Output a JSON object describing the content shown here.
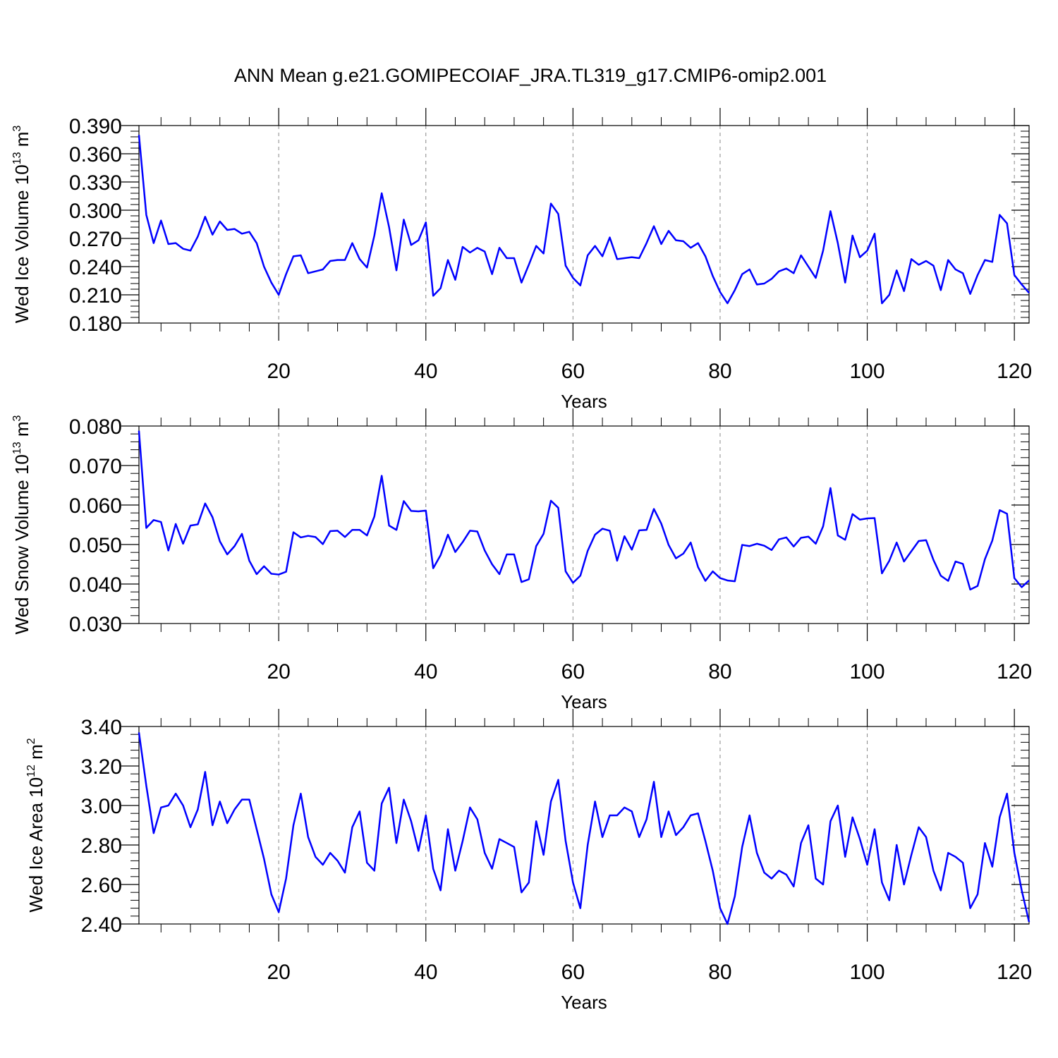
{
  "title": "ANN Mean g.e21.GOMIPECOIAF_JRA.TL319_g17.CMIP6-omip2.001",
  "colors": {
    "line": "#0000ff",
    "axes": "#000000",
    "grid": "#888888"
  },
  "chart_data": [
    {
      "type": "line",
      "xlabel": "Years",
      "ylabel": {
        "prefix": "Wed Ice Volume 10",
        "exp": "13",
        "unit": " m",
        "unit_exp": "3"
      },
      "xlim": [
        1,
        122
      ],
      "ylim": [
        0.18,
        0.39
      ],
      "xticks": [
        20,
        40,
        60,
        80,
        100,
        120
      ],
      "xtick_labels": [
        "20",
        "40",
        "60",
        "80",
        "100",
        "120"
      ],
      "yticks": [
        0.18,
        0.21,
        0.24,
        0.27,
        0.3,
        0.33,
        0.36,
        0.39
      ],
      "ytick_labels": [
        "0.180",
        "0.210",
        "0.240",
        "0.270",
        "0.300",
        "0.330",
        "0.360",
        "0.390"
      ],
      "grid": "vertical dashed at x ticks",
      "x_start": 1,
      "values": [
        0.38,
        0.295,
        0.265,
        0.289,
        0.264,
        0.265,
        0.259,
        0.257,
        0.272,
        0.293,
        0.274,
        0.288,
        0.279,
        0.28,
        0.275,
        0.277,
        0.265,
        0.24,
        0.223,
        0.21,
        0.232,
        0.251,
        0.252,
        0.233,
        0.235,
        0.237,
        0.246,
        0.247,
        0.247,
        0.265,
        0.248,
        0.239,
        0.273,
        0.318,
        0.282,
        0.236,
        0.29,
        0.263,
        0.268,
        0.287,
        0.209,
        0.217,
        0.247,
        0.226,
        0.261,
        0.255,
        0.26,
        0.256,
        0.232,
        0.26,
        0.249,
        0.249,
        0.223,
        0.242,
        0.262,
        0.254,
        0.307,
        0.296,
        0.241,
        0.228,
        0.22,
        0.252,
        0.262,
        0.251,
        0.271,
        0.248,
        0.249,
        0.25,
        0.249,
        0.265,
        0.283,
        0.264,
        0.278,
        0.268,
        0.267,
        0.26,
        0.265,
        0.251,
        0.23,
        0.213,
        0.201,
        0.215,
        0.232,
        0.237,
        0.221,
        0.222,
        0.227,
        0.235,
        0.238,
        0.233,
        0.252,
        0.24,
        0.228,
        0.257,
        0.299,
        0.265,
        0.223,
        0.273,
        0.25,
        0.257,
        0.275,
        0.201,
        0.21,
        0.236,
        0.214,
        0.248,
        0.242,
        0.246,
        0.241,
        0.215,
        0.247,
        0.237,
        0.233,
        0.211,
        0.231,
        0.247,
        0.245,
        0.295,
        0.286,
        0.231,
        0.221,
        0.212
      ]
    },
    {
      "type": "line",
      "xlabel": "Years",
      "ylabel": {
        "prefix": "Wed Snow Volume 10",
        "exp": "13",
        "unit": " m",
        "unit_exp": "3"
      },
      "xlim": [
        1,
        122
      ],
      "ylim": [
        0.03,
        0.08
      ],
      "xticks": [
        20,
        40,
        60,
        80,
        100,
        120
      ],
      "xtick_labels": [
        "20",
        "40",
        "60",
        "80",
        "100",
        "120"
      ],
      "yticks": [
        0.03,
        0.04,
        0.05,
        0.06,
        0.07,
        0.08
      ],
      "ytick_labels": [
        "0.030",
        "0.040",
        "0.050",
        "0.060",
        "0.070",
        "0.080"
      ],
      "grid": "vertical dashed at x ticks",
      "x_start": 1,
      "values": [
        0.0788,
        0.0542,
        0.0562,
        0.0557,
        0.0485,
        0.0552,
        0.0502,
        0.0548,
        0.0551,
        0.0604,
        0.0569,
        0.0508,
        0.0475,
        0.0496,
        0.0527,
        0.0459,
        0.0425,
        0.0445,
        0.0426,
        0.0424,
        0.0431,
        0.0531,
        0.0518,
        0.0522,
        0.0519,
        0.0501,
        0.0534,
        0.0535,
        0.0519,
        0.0537,
        0.0537,
        0.0523,
        0.0571,
        0.0674,
        0.0548,
        0.0537,
        0.061,
        0.0585,
        0.0584,
        0.0586,
        0.044,
        0.0473,
        0.0525,
        0.0481,
        0.0506,
        0.0535,
        0.0533,
        0.0485,
        0.045,
        0.0425,
        0.0475,
        0.0475,
        0.0405,
        0.0412,
        0.0496,
        0.0527,
        0.0611,
        0.0593,
        0.0432,
        0.0403,
        0.0421,
        0.0484,
        0.0525,
        0.054,
        0.0535,
        0.0459,
        0.0521,
        0.0487,
        0.0536,
        0.0537,
        0.059,
        0.0553,
        0.0499,
        0.0465,
        0.0477,
        0.0505,
        0.0443,
        0.0408,
        0.0432,
        0.0415,
        0.0409,
        0.0407,
        0.0499,
        0.0496,
        0.0502,
        0.0497,
        0.0486,
        0.0513,
        0.0518,
        0.0495,
        0.0517,
        0.052,
        0.0502,
        0.0546,
        0.0643,
        0.0523,
        0.0512,
        0.0577,
        0.0563,
        0.0566,
        0.0567,
        0.0427,
        0.0459,
        0.0505,
        0.0457,
        0.0483,
        0.0509,
        0.0511,
        0.0461,
        0.0421,
        0.0408,
        0.0457,
        0.0451,
        0.0386,
        0.0395,
        0.0463,
        0.051,
        0.0587,
        0.0578,
        0.0415,
        0.0392,
        0.0409
      ]
    },
    {
      "type": "line",
      "xlabel": "Years",
      "ylabel": {
        "prefix": "Wed Ice Area 10",
        "exp": "12",
        "unit": " m",
        "unit_exp": "2"
      },
      "xlim": [
        1,
        122
      ],
      "ylim": [
        2.4,
        3.4
      ],
      "xticks": [
        20,
        40,
        60,
        80,
        100,
        120
      ],
      "xtick_labels": [
        "20",
        "40",
        "60",
        "80",
        "100",
        "120"
      ],
      "yticks": [
        2.4,
        2.6,
        2.8,
        3.0,
        3.2,
        3.4
      ],
      "ytick_labels": [
        "2.40",
        "2.60",
        "2.80",
        "3.00",
        "3.20",
        "3.40"
      ],
      "grid": "vertical dashed at x ticks",
      "x_start": 1,
      "values": [
        3.37,
        3.1,
        2.86,
        2.99,
        3.0,
        3.06,
        3.0,
        2.89,
        2.98,
        3.17,
        2.9,
        3.02,
        2.91,
        2.98,
        3.03,
        3.03,
        2.88,
        2.73,
        2.55,
        2.46,
        2.63,
        2.9,
        3.06,
        2.84,
        2.74,
        2.7,
        2.76,
        2.72,
        2.66,
        2.89,
        2.97,
        2.71,
        2.67,
        3.01,
        3.09,
        2.81,
        3.03,
        2.92,
        2.77,
        2.95,
        2.68,
        2.57,
        2.88,
        2.67,
        2.82,
        2.99,
        2.93,
        2.76,
        2.68,
        2.83,
        2.81,
        2.79,
        2.56,
        2.61,
        2.92,
        2.75,
        3.02,
        3.13,
        2.82,
        2.61,
        2.48,
        2.8,
        3.02,
        2.84,
        2.95,
        2.95,
        2.99,
        2.97,
        2.84,
        2.93,
        3.12,
        2.84,
        2.97,
        2.85,
        2.89,
        2.95,
        2.96,
        2.82,
        2.67,
        2.48,
        2.4,
        2.54,
        2.79,
        2.95,
        2.76,
        2.66,
        2.63,
        2.67,
        2.65,
        2.59,
        2.81,
        2.9,
        2.63,
        2.6,
        2.92,
        3.0,
        2.74,
        2.94,
        2.83,
        2.7,
        2.88,
        2.61,
        2.52,
        2.8,
        2.6,
        2.75,
        2.89,
        2.84,
        2.67,
        2.57,
        2.76,
        2.74,
        2.71,
        2.48,
        2.55,
        2.81,
        2.69,
        2.94,
        3.06,
        2.76,
        2.57,
        2.41
      ]
    }
  ]
}
